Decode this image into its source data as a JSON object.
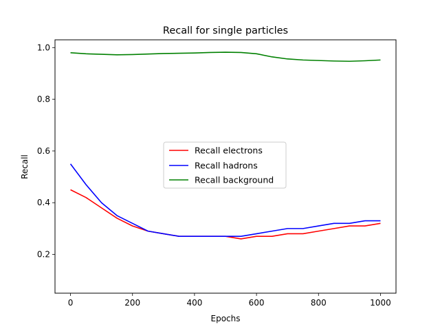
{
  "chart_data": {
    "type": "line",
    "title": "Recall for single particles",
    "xlabel": "Epochs",
    "ylabel": "Recall",
    "xlim": [
      -50,
      1050
    ],
    "ylim": [
      0.05,
      1.03
    ],
    "xticks": [
      0,
      200,
      400,
      600,
      800,
      1000
    ],
    "xtick_labels": [
      "0",
      "200",
      "400",
      "600",
      "800",
      "1000"
    ],
    "yticks": [
      0.2,
      0.4,
      0.6,
      0.8,
      1.0
    ],
    "ytick_labels": [
      "0.2",
      "0.4",
      "0.6",
      "0.8",
      "1.0"
    ],
    "grid": false,
    "legend_position": "center",
    "x": [
      0,
      50,
      100,
      150,
      200,
      250,
      300,
      350,
      400,
      450,
      500,
      550,
      600,
      650,
      700,
      750,
      800,
      850,
      900,
      950,
      1000
    ],
    "series": [
      {
        "name": "Recall electrons",
        "color": "#ff0000",
        "values": [
          0.45,
          0.42,
          0.38,
          0.34,
          0.31,
          0.29,
          0.28,
          0.27,
          0.27,
          0.27,
          0.27,
          0.26,
          0.27,
          0.27,
          0.28,
          0.28,
          0.29,
          0.3,
          0.31,
          0.31,
          0.32
        ]
      },
      {
        "name": "Recall hadrons",
        "color": "#0000ff",
        "values": [
          0.55,
          0.47,
          0.4,
          0.35,
          0.32,
          0.29,
          0.28,
          0.27,
          0.27,
          0.27,
          0.27,
          0.27,
          0.28,
          0.29,
          0.3,
          0.3,
          0.31,
          0.32,
          0.32,
          0.33,
          0.33
        ]
      },
      {
        "name": "Recall background",
        "color": "#008000",
        "values": [
          0.98,
          0.976,
          0.974,
          0.972,
          0.973,
          0.975,
          0.977,
          0.978,
          0.979,
          0.981,
          0.982,
          0.981,
          0.976,
          0.964,
          0.956,
          0.952,
          0.95,
          0.948,
          0.947,
          0.949,
          0.952
        ]
      }
    ]
  }
}
